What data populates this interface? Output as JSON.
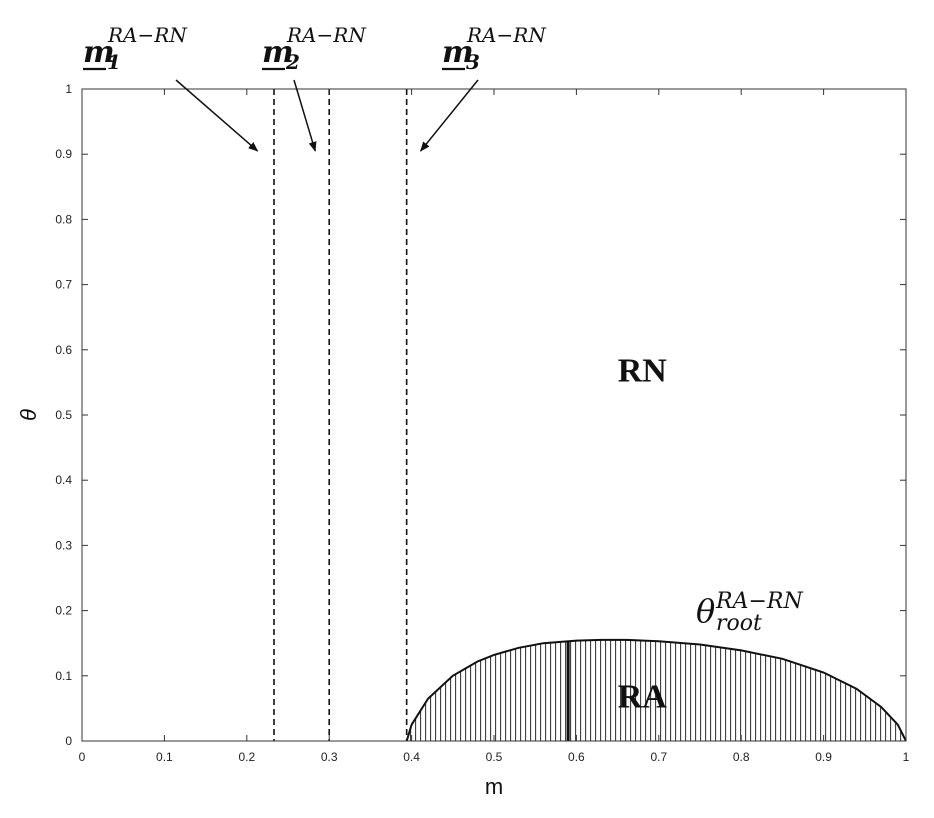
{
  "chart_data": {
    "type": "line",
    "xlabel": "m",
    "ylabel": "θ",
    "xlim": [
      0,
      1
    ],
    "ylim": [
      0,
      1
    ],
    "grid": false,
    "x_ticks": [
      "0",
      "0.1",
      "0.2",
      "0.3",
      "0.4",
      "0.5",
      "0.6",
      "0.7",
      "0.8",
      "0.9",
      "1"
    ],
    "y_ticks": [
      "0",
      "0.1",
      "0.2",
      "0.3",
      "0.4",
      "0.5",
      "0.6",
      "0.7",
      "0.8",
      "0.9",
      "1"
    ],
    "vertical_lines": [
      {
        "x": 0.233,
        "style": "dashed"
      },
      {
        "x": 0.3,
        "style": "dashed"
      },
      {
        "x": 0.394,
        "style": "dashed"
      }
    ],
    "series": [
      {
        "x": [
          0.394,
          0.4,
          0.42,
          0.45,
          0.48,
          0.5,
          0.53,
          0.56,
          0.6,
          0.63,
          0.66,
          0.7,
          0.75,
          0.8,
          0.85,
          0.9,
          0.94,
          0.97,
          0.99,
          1.0
        ],
        "values": [
          0.0,
          0.025,
          0.065,
          0.1,
          0.122,
          0.132,
          0.143,
          0.15,
          0.154,
          0.155,
          0.155,
          0.153,
          0.148,
          0.139,
          0.126,
          0.105,
          0.08,
          0.052,
          0.025,
          0.0
        ]
      }
    ],
    "regions": [
      {
        "label": "RN",
        "x": 0.68,
        "y": 0.57
      },
      {
        "label": "RA",
        "x": 0.68,
        "y": 0.07,
        "fill": "vertical-hatch"
      }
    ],
    "annotations": [
      {
        "main": "m",
        "sub": "1",
        "sup": "RA−RN",
        "arrow_to": [
          0.213,
          0.905
        ]
      },
      {
        "main": "m",
        "sub": "2",
        "sup": "RA−RN",
        "arrow_to": [
          0.283,
          0.905
        ]
      },
      {
        "main": "m",
        "sub": "3",
        "sup": "RA−RN",
        "arrow_to": [
          0.411,
          0.905
        ]
      },
      {
        "main": "θ",
        "sub": "root",
        "sup": "RA−RN"
      }
    ],
    "vertical_marker": {
      "x": 0.59
    }
  }
}
